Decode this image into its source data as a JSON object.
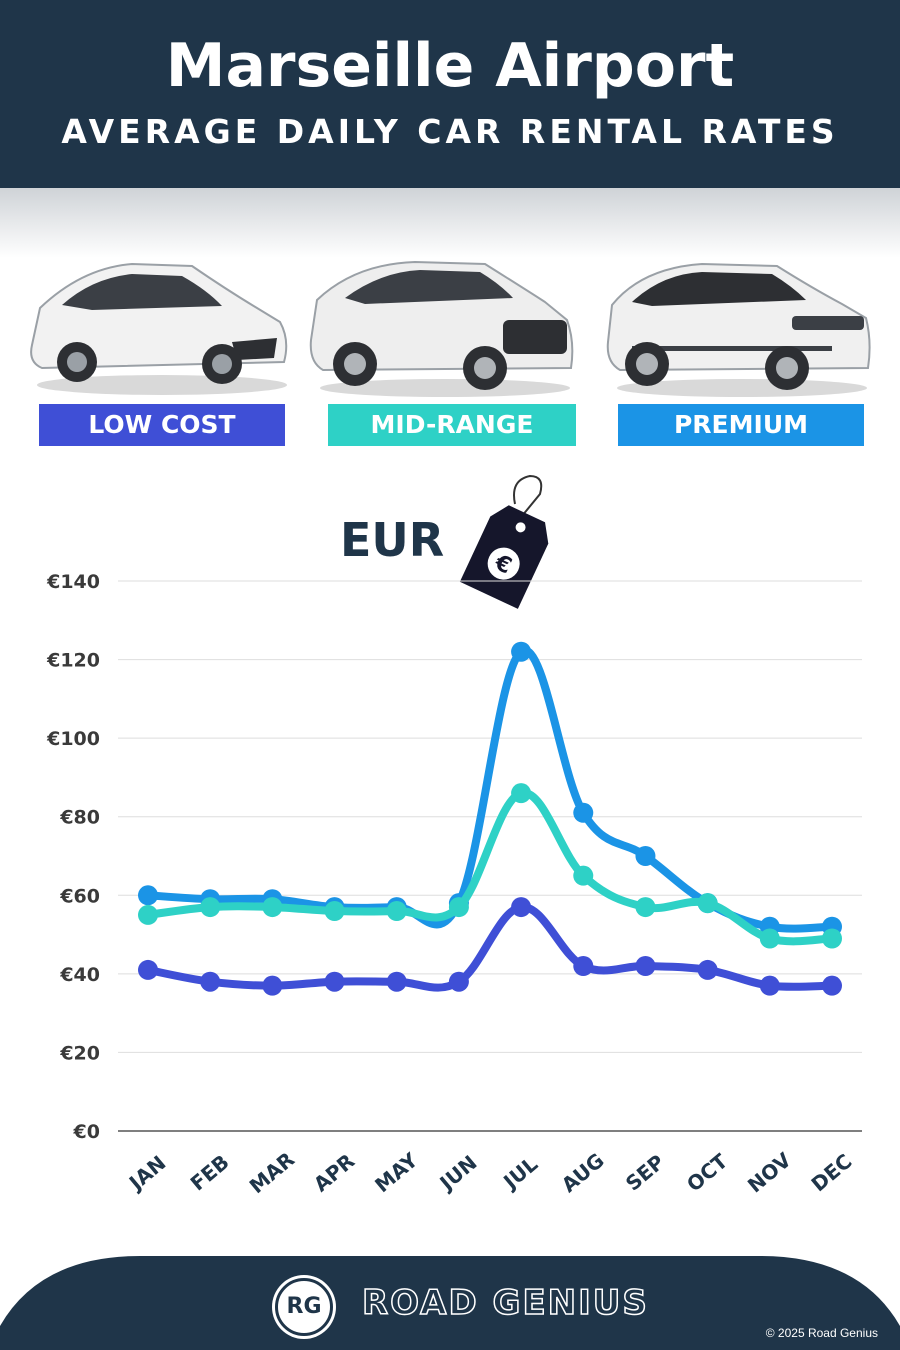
{
  "header": {
    "title": "Marseille Airport",
    "subtitle": "AVERAGE DAILY CAR RENTAL RATES"
  },
  "categories": [
    {
      "label": "LOW COST",
      "color": "#3f4fd6",
      "icon": "hatchback-car-image"
    },
    {
      "label": "MID-RANGE",
      "color": "#2ed1c6",
      "icon": "suv-car-image"
    },
    {
      "label": "PREMIUM",
      "color": "#1b94e6",
      "icon": "luxury-suv-car-image"
    }
  ],
  "currency": {
    "label": "EUR",
    "symbol": "€",
    "icon": "price-tag-icon"
  },
  "chart_data": {
    "type": "line",
    "categories": [
      "JAN",
      "FEB",
      "MAR",
      "APR",
      "MAY",
      "JUN",
      "JUL",
      "AUG",
      "SEP",
      "OCT",
      "NOV",
      "DEC"
    ],
    "ylim": [
      0,
      140
    ],
    "yticks": [
      "€0",
      "€20",
      "€40",
      "€60",
      "€80",
      "€100",
      "€120",
      "€140"
    ],
    "grid": true,
    "series": [
      {
        "name": "PREMIUM",
        "color": "#1b94e6",
        "values": [
          60,
          59,
          59,
          57,
          57,
          58,
          122,
          81,
          70,
          58,
          52,
          52
        ]
      },
      {
        "name": "MID-RANGE",
        "color": "#2ed1c6",
        "values": [
          55,
          57,
          57,
          56,
          56,
          57,
          86,
          65,
          57,
          58,
          49,
          49
        ]
      },
      {
        "name": "LOW COST",
        "color": "#3f4fd6",
        "values": [
          41,
          38,
          37,
          38,
          38,
          38,
          57,
          42,
          42,
          41,
          37,
          37
        ]
      }
    ]
  },
  "footer": {
    "brand": "ROAD GENIUS",
    "logo": "RG",
    "copyright": "© 2025 Road Genius"
  }
}
